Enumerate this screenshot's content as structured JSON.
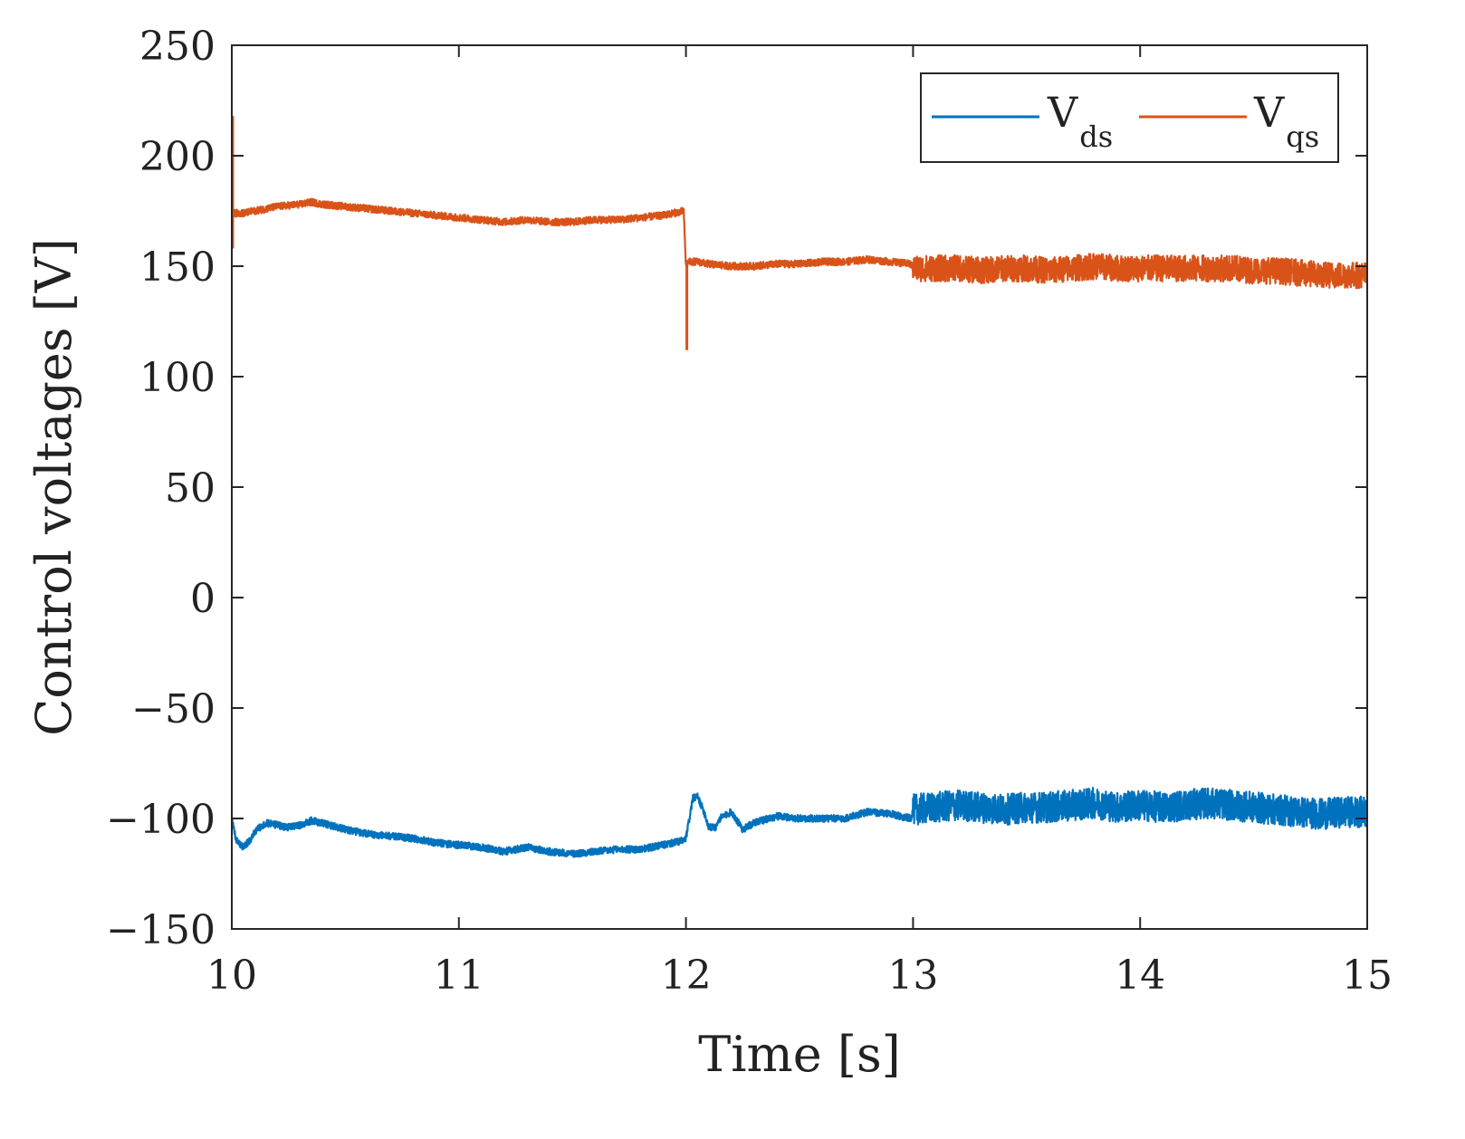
{
  "chart_data": {
    "type": "line",
    "title": "",
    "xlabel": "Time [s]",
    "ylabel": "Control voltages [V]",
    "xlim": [
      10,
      15
    ],
    "ylim": [
      -150,
      250
    ],
    "xticks": [
      10,
      11,
      12,
      13,
      14,
      15
    ],
    "yticks": [
      -150,
      -100,
      -50,
      0,
      50,
      100,
      150,
      200,
      250
    ],
    "xtick_labels": [
      "10",
      "11",
      "12",
      "13",
      "14",
      "15"
    ],
    "ytick_labels": [
      "−150",
      "−100",
      "−50",
      "0",
      "50",
      "100",
      "150",
      "200",
      "250"
    ],
    "grid": false,
    "legend_position": "top-right",
    "series": [
      {
        "name": "V_ds",
        "legend_main": "V",
        "legend_sub": "ds",
        "color": "#0072BD",
        "x": [
          10.0,
          10.02,
          10.05,
          10.08,
          10.1,
          10.15,
          10.2,
          10.25,
          10.3,
          10.35,
          10.4,
          10.5,
          10.6,
          10.7,
          10.8,
          10.9,
          11.0,
          11.1,
          11.2,
          11.25,
          11.3,
          11.4,
          11.5,
          11.6,
          11.7,
          11.8,
          11.9,
          11.99,
          12.0,
          12.03,
          12.05,
          12.08,
          12.1,
          12.13,
          12.15,
          12.2,
          12.25,
          12.3,
          12.4,
          12.5,
          12.6,
          12.7,
          12.8,
          12.9,
          12.99,
          13.0,
          13.1,
          13.2,
          13.3,
          13.4,
          13.5,
          13.6,
          13.7,
          13.8,
          13.9,
          14.0,
          14.1,
          14.2,
          14.3,
          14.4,
          14.5,
          14.6,
          14.7,
          14.8,
          14.9,
          15.0
        ],
        "y": [
          -100,
          -110,
          -113,
          -110,
          -106,
          -102,
          -103,
          -104,
          -103,
          -101,
          -102,
          -105,
          -107,
          -108,
          -109,
          -111,
          -112,
          -113,
          -115,
          -114,
          -113,
          -115,
          -116,
          -115,
          -114,
          -114,
          -112,
          -110,
          -109,
          -91,
          -90,
          -97,
          -104,
          -104,
          -100,
          -97,
          -105,
          -102,
          -99,
          -100,
          -100,
          -100,
          -97,
          -98,
          -100,
          -96,
          -95,
          -94,
          -95,
          -96,
          -95,
          -95,
          -94,
          -93,
          -95,
          -94,
          -95,
          -94,
          -93,
          -94,
          -95,
          -96,
          -97,
          -98,
          -97,
          -97
        ],
        "noise_envelope_after_13s": 7
      },
      {
        "name": "V_qs",
        "legend_main": "V",
        "legend_sub": "qs",
        "color": "#D95319",
        "x": [
          10.0,
          10.05,
          10.1,
          10.2,
          10.3,
          10.35,
          10.4,
          10.5,
          10.6,
          10.7,
          10.8,
          10.9,
          11.0,
          11.1,
          11.2,
          11.3,
          11.4,
          11.5,
          11.6,
          11.7,
          11.8,
          11.9,
          11.99,
          12.0,
          12.01,
          12.02,
          12.05,
          12.1,
          12.2,
          12.3,
          12.4,
          12.5,
          12.6,
          12.7,
          12.8,
          12.9,
          12.99,
          13.0,
          13.1,
          13.2,
          13.3,
          13.4,
          13.5,
          13.6,
          13.7,
          13.8,
          13.9,
          14.0,
          14.1,
          14.2,
          14.3,
          14.4,
          14.5,
          14.6,
          14.7,
          14.8,
          14.9,
          15.0
        ],
        "y": [
          174,
          174,
          175,
          177,
          178,
          179,
          178,
          177,
          176,
          175,
          174,
          173,
          172,
          171,
          170,
          171,
          170,
          170,
          171,
          171,
          172,
          173,
          175,
          150,
          152,
          152,
          152,
          151,
          150,
          150,
          151,
          151,
          152,
          152,
          153,
          152,
          151,
          149,
          149,
          149,
          148,
          149,
          149,
          148,
          149,
          150,
          149,
          149,
          149,
          149,
          149,
          149,
          148,
          148,
          147,
          146,
          146,
          146
        ],
        "transient_peaks": [
          {
            "x": 10.0,
            "y": 218
          },
          {
            "x": 10.0,
            "y": 158
          },
          {
            "x": 12.0,
            "y": 112
          }
        ],
        "noise_envelope_after_13s": 6
      }
    ]
  }
}
